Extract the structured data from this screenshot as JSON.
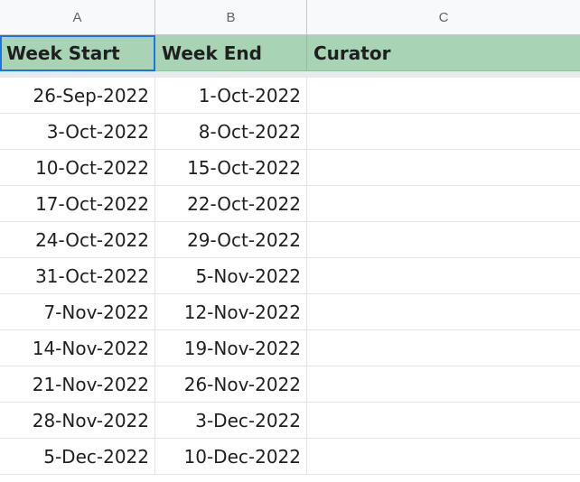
{
  "columns": [
    "A",
    "B",
    "C"
  ],
  "headers": {
    "week_start": "Week Start",
    "week_end": "Week End",
    "curator": "Curator"
  },
  "rows": [
    {
      "start": "26-Sep-2022",
      "end": "1-Oct-2022",
      "curator": ""
    },
    {
      "start": "3-Oct-2022",
      "end": "8-Oct-2022",
      "curator": ""
    },
    {
      "start": "10-Oct-2022",
      "end": "15-Oct-2022",
      "curator": ""
    },
    {
      "start": "17-Oct-2022",
      "end": "22-Oct-2022",
      "curator": ""
    },
    {
      "start": "24-Oct-2022",
      "end": "29-Oct-2022",
      "curator": ""
    },
    {
      "start": "31-Oct-2022",
      "end": "5-Nov-2022",
      "curator": ""
    },
    {
      "start": "7-Nov-2022",
      "end": "12-Nov-2022",
      "curator": ""
    },
    {
      "start": "14-Nov-2022",
      "end": "19-Nov-2022",
      "curator": ""
    },
    {
      "start": "21-Nov-2022",
      "end": "26-Nov-2022",
      "curator": ""
    },
    {
      "start": "28-Nov-2022",
      "end": "3-Dec-2022",
      "curator": ""
    },
    {
      "start": "5-Dec-2022",
      "end": "10-Dec-2022",
      "curator": ""
    }
  ],
  "colors": {
    "header_fill": "#a8d3b4",
    "selection": "#1a73e8"
  }
}
